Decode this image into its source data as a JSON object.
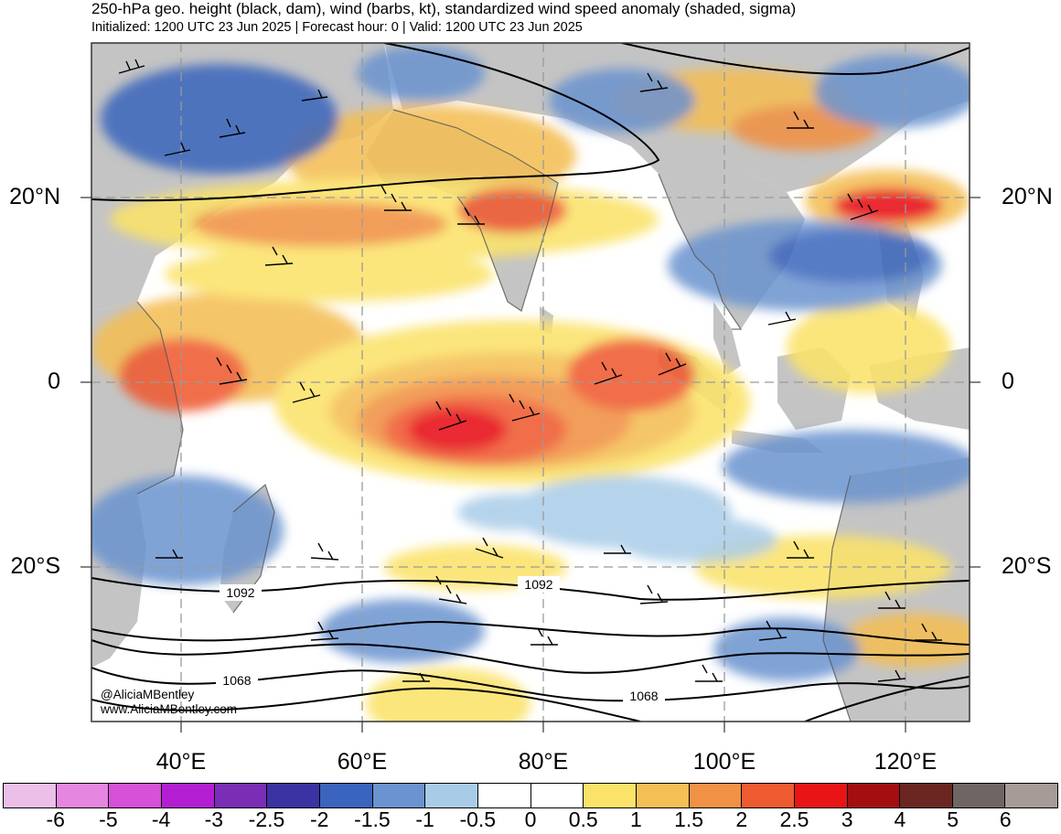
{
  "title": "250-hPa geo. height (black, dam), wind (barbs, kt), standardized wind speed anomaly (shaded, sigma)",
  "subtitle": "Initialized: 1200 UTC 23 Jun 2025 | Forecast hour: 0 | Valid: 1200 UTC 23 Jun 2025",
  "map": {
    "lat_labels": [
      "20°N",
      "0",
      "20°S"
    ],
    "lon_labels": [
      "40°E",
      "60°E",
      "80°E",
      "100°E",
      "120°E"
    ],
    "contour_labels": [
      "1092",
      "1092",
      "1068",
      "1068"
    ],
    "credit_handle": "@AliciaMBentley",
    "credit_url": "www.AliciaMBentley.com"
  },
  "colorbar": {
    "labels": [
      "-6",
      "-5",
      "-4",
      "-3",
      "-2.5",
      "-2",
      "-1.5",
      "-1",
      "-0.5",
      "0",
      "0.5",
      "1",
      "1.5",
      "2",
      "2.5",
      "3",
      "4",
      "5",
      "6"
    ],
    "colors": [
      "#ecbfe8",
      "#e586e0",
      "#d650d8",
      "#b41ed2",
      "#7a2db5",
      "#3b32a4",
      "#3a64bd",
      "#6a93cf",
      "#a8cce8",
      "#ffffff",
      "#ffffff",
      "#fbe36a",
      "#f4bf55",
      "#f19145",
      "#ef5b30",
      "#e81416",
      "#a40e10",
      "#6b2622",
      "#6f6663",
      "#a79b98"
    ]
  },
  "style": {
    "land": "#c4c4c4",
    "ocean": "#ffffff",
    "contour": "#000000",
    "grid": "#9a9a9a",
    "coast": "#555555"
  }
}
